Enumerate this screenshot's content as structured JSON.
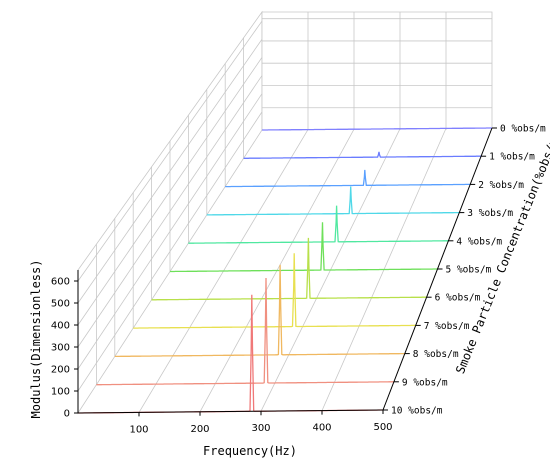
{
  "chart_data": {
    "type": "line",
    "subtype": "3d-waterfall",
    "title": "",
    "xlabel": "Frequency(Hz)",
    "ylabel": "Smoke Particle Concentration(%obs/m)",
    "zlabel": "Modulus(Dimensionless)",
    "xlim": [
      0,
      500
    ],
    "zlim": [
      0,
      650
    ],
    "x_ticks": [
      "100",
      "200",
      "300",
      "400",
      "500"
    ],
    "z_ticks": [
      "0",
      "100",
      "200",
      "300",
      "400",
      "500",
      "600"
    ],
    "grid": true,
    "categories": [
      "0 %obs/m",
      "1 %obs/m",
      "2 %obs/m",
      "3 %obs/m",
      "4 %obs/m",
      "5 %obs/m",
      "6 %obs/m",
      "7 %obs/m",
      "8 %obs/m",
      "9 %obs/m",
      "10 %obs/m"
    ],
    "series": [
      {
        "peak_x": 285,
        "peak_value": 0,
        "color": "#8080ff"
      },
      {
        "peak_x": 285,
        "peak_value": 40,
        "color": "#6a7cff"
      },
      {
        "peak_x": 285,
        "peak_value": 110,
        "color": "#5aa0ff"
      },
      {
        "peak_x": 285,
        "peak_value": 180,
        "color": "#4fd8e8"
      },
      {
        "peak_x": 285,
        "peak_value": 225,
        "color": "#50e8a0"
      },
      {
        "peak_x": 285,
        "peak_value": 280,
        "color": "#6ee05a"
      },
      {
        "peak_x": 285,
        "peak_value": 335,
        "color": "#b8e04a"
      },
      {
        "peak_x": 285,
        "peak_value": 385,
        "color": "#e8e050"
      },
      {
        "peak_x": 285,
        "peak_value": 450,
        "color": "#f0b860"
      },
      {
        "peak_x": 285,
        "peak_value": 500,
        "color": "#f09080"
      },
      {
        "peak_x": 285,
        "peak_value": 530,
        "color": "#f07878"
      }
    ]
  }
}
